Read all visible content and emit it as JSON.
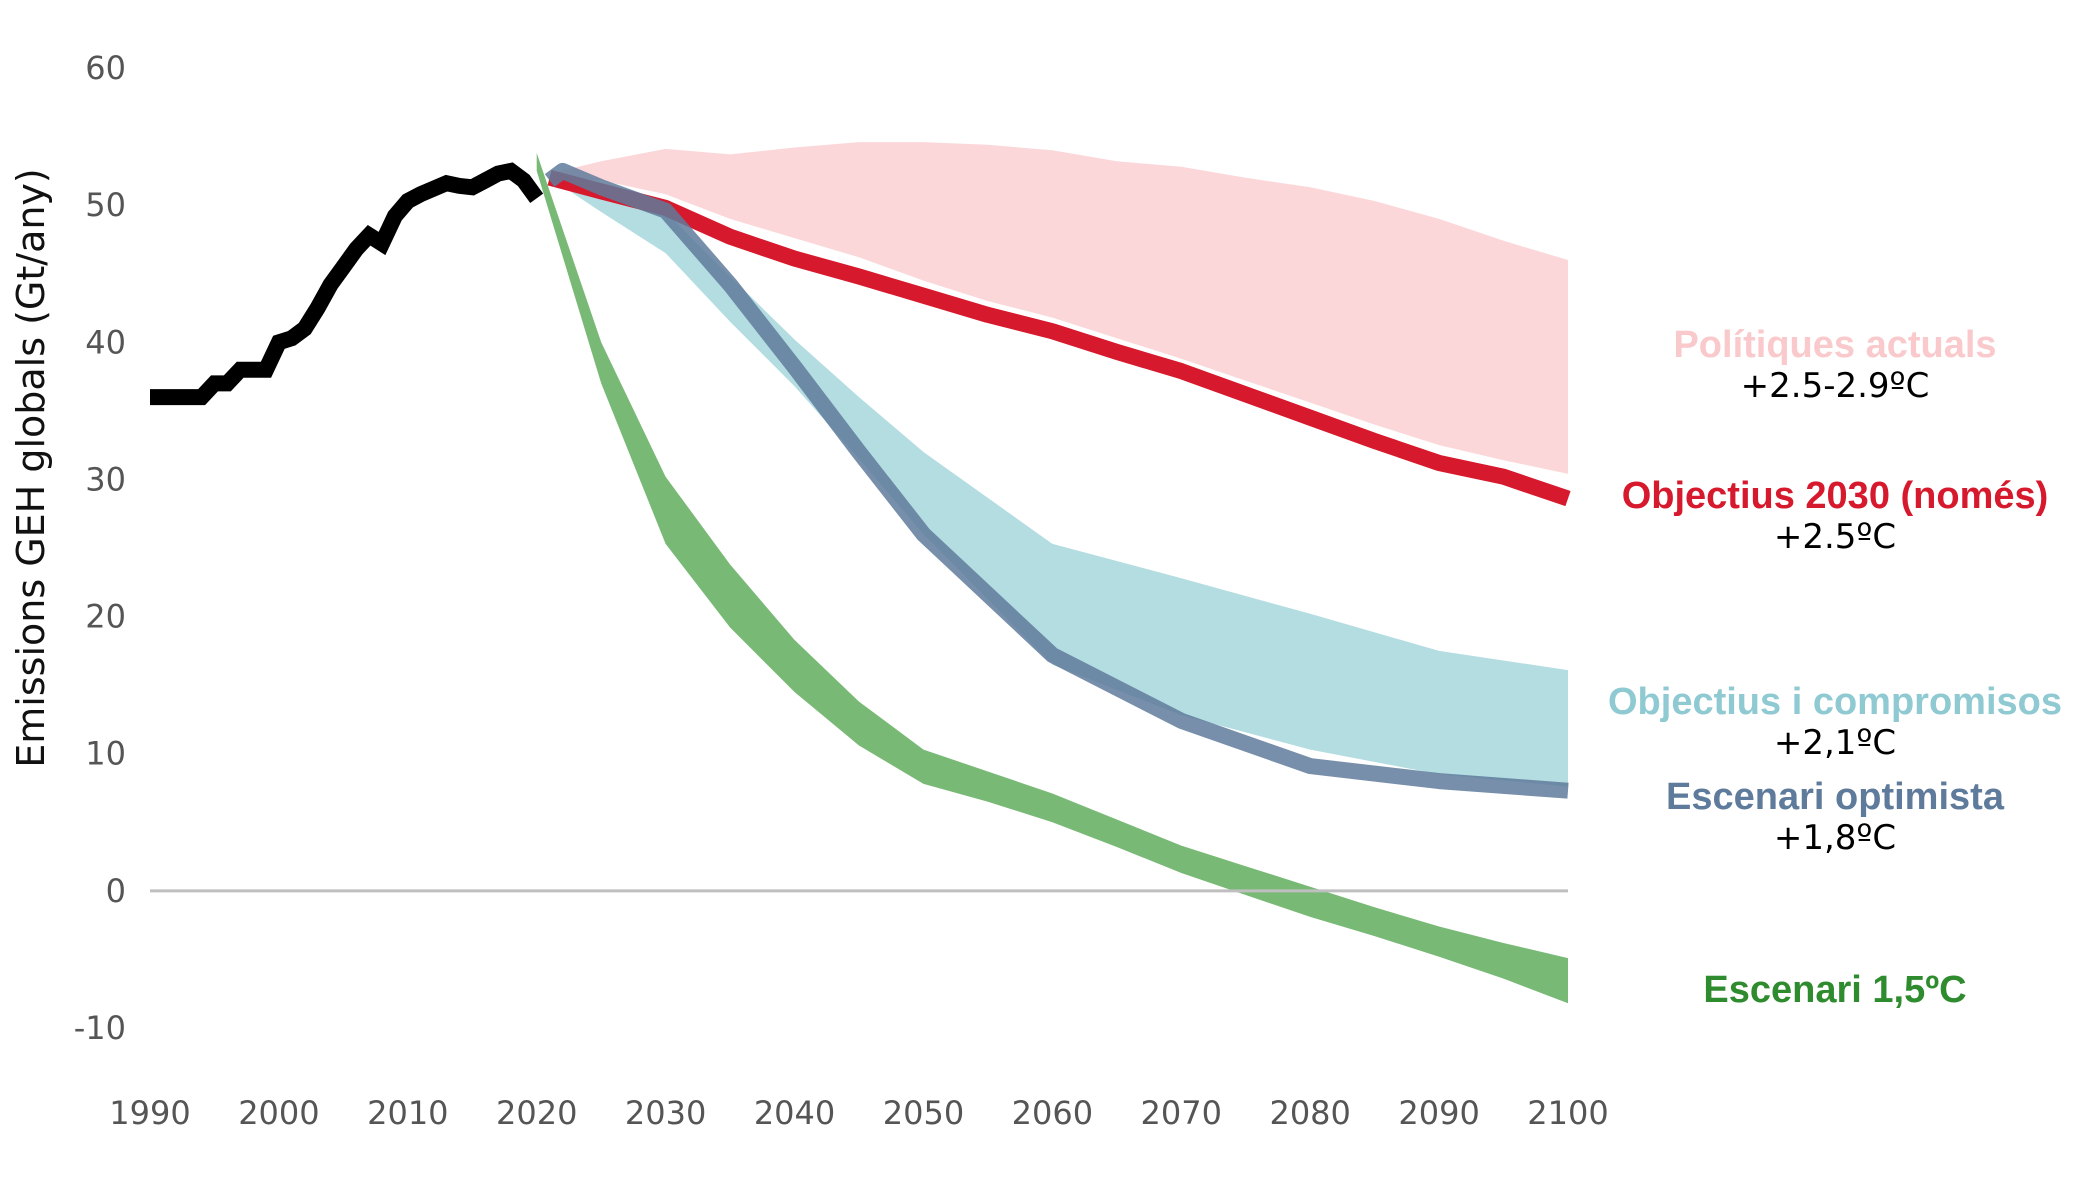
{
  "chart_data": {
    "type": "area",
    "ylabel": "Emissions GEH globals (Gt/any)",
    "xlabel": "",
    "xlim": [
      1990,
      2100
    ],
    "ylim": [
      -10,
      60
    ],
    "xticks": [
      "1990",
      "2000",
      "2010",
      "2020",
      "2030",
      "2040",
      "2050",
      "2060",
      "2070",
      "2080",
      "2090",
      "2100"
    ],
    "yticks": [
      "60",
      "50",
      "40",
      "30",
      "20",
      "10",
      "0",
      "-10"
    ],
    "zero_line": true,
    "historical": {
      "color": "#000000",
      "x": [
        1990,
        1991,
        1992,
        1993,
        1994,
        1995,
        1996,
        1997,
        1998,
        1999,
        2000,
        2001,
        2002,
        2003,
        2004,
        2005,
        2006,
        2007,
        2008,
        2009,
        2010,
        2011,
        2012,
        2013,
        2014,
        2015,
        2016,
        2017,
        2018,
        2019,
        2020
      ],
      "y": [
        36,
        36,
        36,
        36,
        36,
        37,
        37,
        38,
        38,
        38,
        40,
        40.3,
        41,
        42.5,
        44.2,
        45.5,
        46.8,
        47.8,
        47.2,
        49.2,
        50.3,
        50.8,
        51.2,
        51.6,
        51.4,
        51.3,
        51.8,
        52.3,
        52.5,
        51.8,
        50.5
      ]
    },
    "series": [
      {
        "name": "Polítiques actuals",
        "temp_label": "+2.5-2.9ºC",
        "kind": "band",
        "color": "#f9c9cc",
        "x": [
          2021,
          2025,
          2030,
          2035,
          2040,
          2045,
          2050,
          2055,
          2060,
          2065,
          2070,
          2075,
          2080,
          2085,
          2090,
          2095,
          2100
        ],
        "low": [
          52,
          51.8,
          50.8,
          49,
          47.6,
          46.2,
          44.5,
          43,
          41.8,
          40.3,
          38.8,
          37.2,
          35.6,
          34,
          32.5,
          31.4,
          30.4
        ],
        "high": [
          52.3,
          53.2,
          54.1,
          53.7,
          54.2,
          54.6,
          54.6,
          54.4,
          54,
          53.2,
          52.8,
          52,
          51.3,
          50.3,
          49,
          47.4,
          46
        ]
      },
      {
        "name": "Objectius 2030 (només)",
        "temp_label": "+2.5ºC",
        "kind": "line",
        "color": "#d7192d",
        "x": [
          2021,
          2025,
          2030,
          2035,
          2040,
          2045,
          2050,
          2055,
          2060,
          2065,
          2070,
          2075,
          2080,
          2085,
          2090,
          2095,
          2100
        ],
        "y": [
          52,
          51,
          49.8,
          47.7,
          46.1,
          44.8,
          43.4,
          42,
          40.8,
          39.3,
          37.9,
          36.2,
          34.5,
          32.8,
          31.2,
          30.2,
          28.6
        ]
      },
      {
        "name": "Objectius i compromisos",
        "temp_label": "+2,1ºC",
        "kind": "band",
        "color": "#b4dde2",
        "x": [
          2021,
          2025,
          2030,
          2035,
          2040,
          2045,
          2050,
          2060,
          2070,
          2080,
          2090,
          2100
        ],
        "low": [
          52,
          49.5,
          46.5,
          41.5,
          36.8,
          31.5,
          26,
          16.5,
          12.8,
          10.3,
          8.5,
          7.6
        ],
        "high": [
          52.3,
          51.3,
          49.5,
          44.8,
          40.2,
          36,
          32,
          25.3,
          22.8,
          20.2,
          17.5,
          16.1
        ]
      },
      {
        "name": "Escenari optimista",
        "temp_label": "+1,8ºC",
        "kind": "line",
        "color": "#5f7b9b",
        "x": [
          2021,
          2022,
          2025,
          2030,
          2035,
          2040,
          2045,
          2050,
          2060,
          2070,
          2080,
          2090,
          2100
        ],
        "y": [
          51.8,
          52.5,
          51.3,
          49.6,
          44.2,
          38.2,
          32,
          26,
          17.2,
          12.4,
          9.1,
          8,
          7.3
        ]
      },
      {
        "name": "Escenari 1,5ºC",
        "temp_label": "",
        "kind": "band",
        "color": "#79b976",
        "x": [
          2020,
          2025,
          2030,
          2035,
          2040,
          2045,
          2050,
          2055,
          2060,
          2065,
          2070,
          2075,
          2080,
          2085,
          2090,
          2095,
          2100
        ],
        "low": [
          52.5,
          37,
          25.3,
          19.2,
          14.5,
          10.6,
          7.8,
          6.5,
          5,
          3.2,
          1.3,
          -0.3,
          -1.9,
          -3.3,
          -4.8,
          -6.4,
          -8.2
        ],
        "high": [
          53.8,
          40,
          30.2,
          23.8,
          18.3,
          13.8,
          10.3,
          8.7,
          7.1,
          5.2,
          3.3,
          1.8,
          0.3,
          -1.2,
          -2.6,
          -3.8,
          -4.9
        ]
      }
    ],
    "annotations": [
      {
        "title": "Polítiques actuals",
        "temp": "+2.5-2.9ºC",
        "color": "#f9c9cc"
      },
      {
        "title": "Objectius 2030 (només)",
        "temp": "+2.5ºC",
        "color": "#d7192d"
      },
      {
        "title": "Objectius i compromisos",
        "temp": "+2,1ºC",
        "color": "#8fc9d2"
      },
      {
        "title": "Escenari optimista",
        "temp": "+1,8ºC",
        "color": "#5f7b9b"
      },
      {
        "title": "Escenari 1,5ºC",
        "temp": "",
        "color": "#2e8b2e"
      }
    ]
  }
}
